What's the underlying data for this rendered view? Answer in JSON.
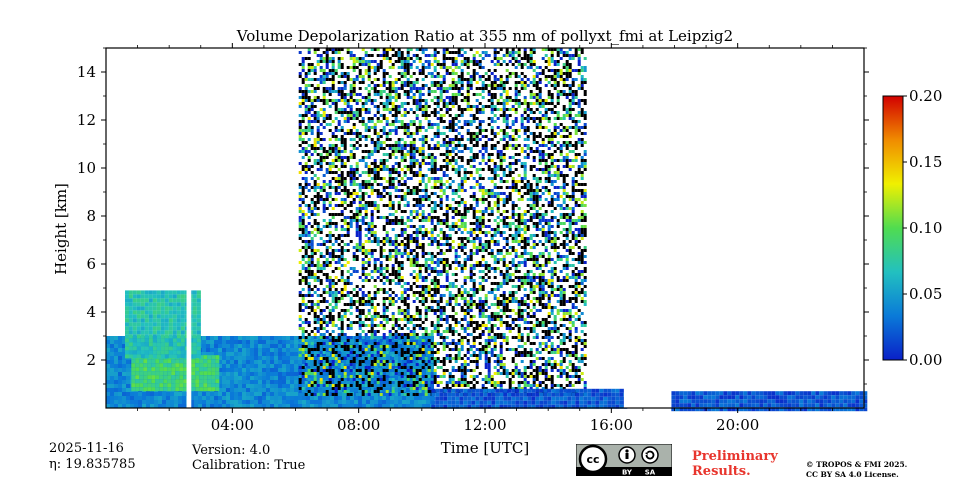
{
  "chart_data": {
    "type": "heatmap",
    "title": "Volume Depolarization Ratio at 355 nm of pollyxt_fmi at Leipzig2",
    "xlabel": "Time [UTC]",
    "ylabel": "Height [km]",
    "xlim_hours": [
      0,
      24
    ],
    "ylim_km": [
      0,
      15
    ],
    "x_ticks": [
      {
        "hour": 4,
        "label": "04:00"
      },
      {
        "hour": 8,
        "label": "08:00"
      },
      {
        "hour": 12,
        "label": "12:00"
      },
      {
        "hour": 16,
        "label": "16:00"
      },
      {
        "hour": 20,
        "label": "20:00"
      }
    ],
    "y_ticks": [
      2,
      4,
      6,
      8,
      10,
      12,
      14
    ],
    "y_tick_labels": [
      "2",
      "4",
      "6",
      "8",
      "10",
      "12",
      "14"
    ],
    "colorbar": {
      "range": [
        0.0,
        0.2
      ],
      "ticks": [
        0.0,
        0.05,
        0.1,
        0.15,
        0.2
      ],
      "tick_labels": [
        "0.00",
        "0.05",
        "0.10",
        "0.15",
        "0.20"
      ],
      "colormap": [
        "#0a20c8",
        "#0a7ad8",
        "#22c0c0",
        "#50dc50",
        "#f0f000",
        "#f08c00",
        "#d20000"
      ]
    },
    "features": [
      {
        "name": "boundary-layer aerosol",
        "t_start": 0.0,
        "t_end": 10.3,
        "h_top_km": 3.0,
        "ratio": 0.04
      },
      {
        "name": "depolarizing plume",
        "t_start": 0.8,
        "t_end": 3.5,
        "h_bottom_km": 0.7,
        "h_top_km": 2.2,
        "ratio": 0.09
      },
      {
        "name": "elevated cloud layer",
        "t_start": 0.6,
        "t_end": 2.9,
        "h_bottom_km": 2.2,
        "h_top_km": 4.9,
        "ratio": 0.07
      },
      {
        "name": "noisy daytime signal",
        "t_start": 6.1,
        "t_end": 15.2,
        "h_bottom_km": 0.6,
        "h_top_km": 15.0,
        "ratio": 0.06
      },
      {
        "name": "low layer",
        "t_start": 10.3,
        "t_end": 16.4,
        "h_bottom_km": 0.0,
        "h_top_km": 0.8,
        "ratio": 0.02
      },
      {
        "name": "evening low layer",
        "t_start": 17.9,
        "t_end": 24.0,
        "h_bottom_km": 0.0,
        "h_top_km": 0.7,
        "ratio": 0.02
      }
    ],
    "no_data_gaps_hours": [
      [
        2.55,
        2.7
      ],
      [
        16.4,
        17.9
      ]
    ]
  },
  "footer": {
    "date": "2025-11-16",
    "eta": "η: 19.835785",
    "version": "Version: 4.0",
    "calibration": "Calibration: True",
    "prelim_line1": "Preliminary",
    "prelim_line2": "Results.",
    "license_line1": "© TROPOS & FMI 2025.",
    "license_line2": "CC BY SA 4.0 License.",
    "cc_badge": "cc",
    "cc_by": "BY",
    "cc_sa": "SA"
  }
}
